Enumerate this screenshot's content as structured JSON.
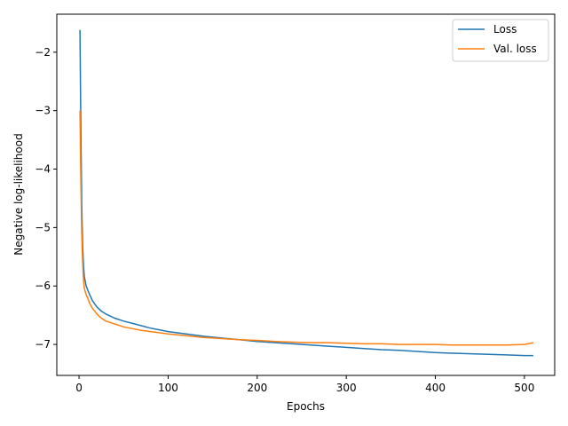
{
  "chart_data": {
    "type": "line",
    "xlabel": "Epochs",
    "ylabel": "Negative log-likelihood",
    "xlim": [
      -25,
      534
    ],
    "ylim": [
      -7.53,
      -1.35
    ],
    "xticks": [
      0,
      100,
      200,
      300,
      400,
      500
    ],
    "yticks": [
      -2,
      -3,
      -4,
      -5,
      -6,
      -7
    ],
    "ytick_labels": [
      "−2",
      "−3",
      "−4",
      "−5",
      "−6",
      "−7"
    ],
    "grid": false,
    "legend_position": "top-right",
    "series": [
      {
        "name": "Loss",
        "color": "#1f77b4",
        "x": [
          1,
          2,
          3,
          4,
          5,
          6,
          8,
          10,
          12,
          15,
          20,
          25,
          30,
          40,
          50,
          60,
          70,
          80,
          90,
          100,
          120,
          140,
          160,
          180,
          200,
          220,
          240,
          260,
          280,
          300,
          320,
          340,
          360,
          380,
          400,
          420,
          440,
          460,
          480,
          500,
          510
        ],
        "y": [
          -1.62,
          -3.3,
          -4.6,
          -5.3,
          -5.65,
          -5.85,
          -6.0,
          -6.08,
          -6.15,
          -6.25,
          -6.36,
          -6.43,
          -6.48,
          -6.55,
          -6.6,
          -6.64,
          -6.68,
          -6.72,
          -6.75,
          -6.78,
          -6.82,
          -6.86,
          -6.89,
          -6.92,
          -6.95,
          -6.97,
          -6.99,
          -7.01,
          -7.03,
          -7.05,
          -7.07,
          -7.09,
          -7.1,
          -7.12,
          -7.14,
          -7.15,
          -7.16,
          -7.17,
          -7.18,
          -7.19,
          -7.19
        ]
      },
      {
        "name": "Val. loss",
        "color": "#ff7f0e",
        "x": [
          1,
          2,
          3,
          4,
          5,
          6,
          8,
          10,
          12,
          15,
          20,
          25,
          30,
          40,
          50,
          60,
          70,
          80,
          90,
          100,
          120,
          140,
          160,
          180,
          200,
          220,
          240,
          260,
          280,
          300,
          320,
          340,
          360,
          380,
          400,
          420,
          440,
          460,
          480,
          500,
          510
        ],
        "y": [
          -3.0,
          -4.2,
          -5.1,
          -5.6,
          -5.9,
          -6.05,
          -6.15,
          -6.22,
          -6.3,
          -6.38,
          -6.48,
          -6.55,
          -6.6,
          -6.65,
          -6.7,
          -6.73,
          -6.76,
          -6.78,
          -6.8,
          -6.82,
          -6.85,
          -6.88,
          -6.9,
          -6.92,
          -6.93,
          -6.95,
          -6.96,
          -6.97,
          -6.97,
          -6.98,
          -6.99,
          -6.99,
          -7.0,
          -7.0,
          -7.0,
          -7.01,
          -7.01,
          -7.01,
          -7.01,
          -7.0,
          -6.97
        ]
      }
    ]
  }
}
